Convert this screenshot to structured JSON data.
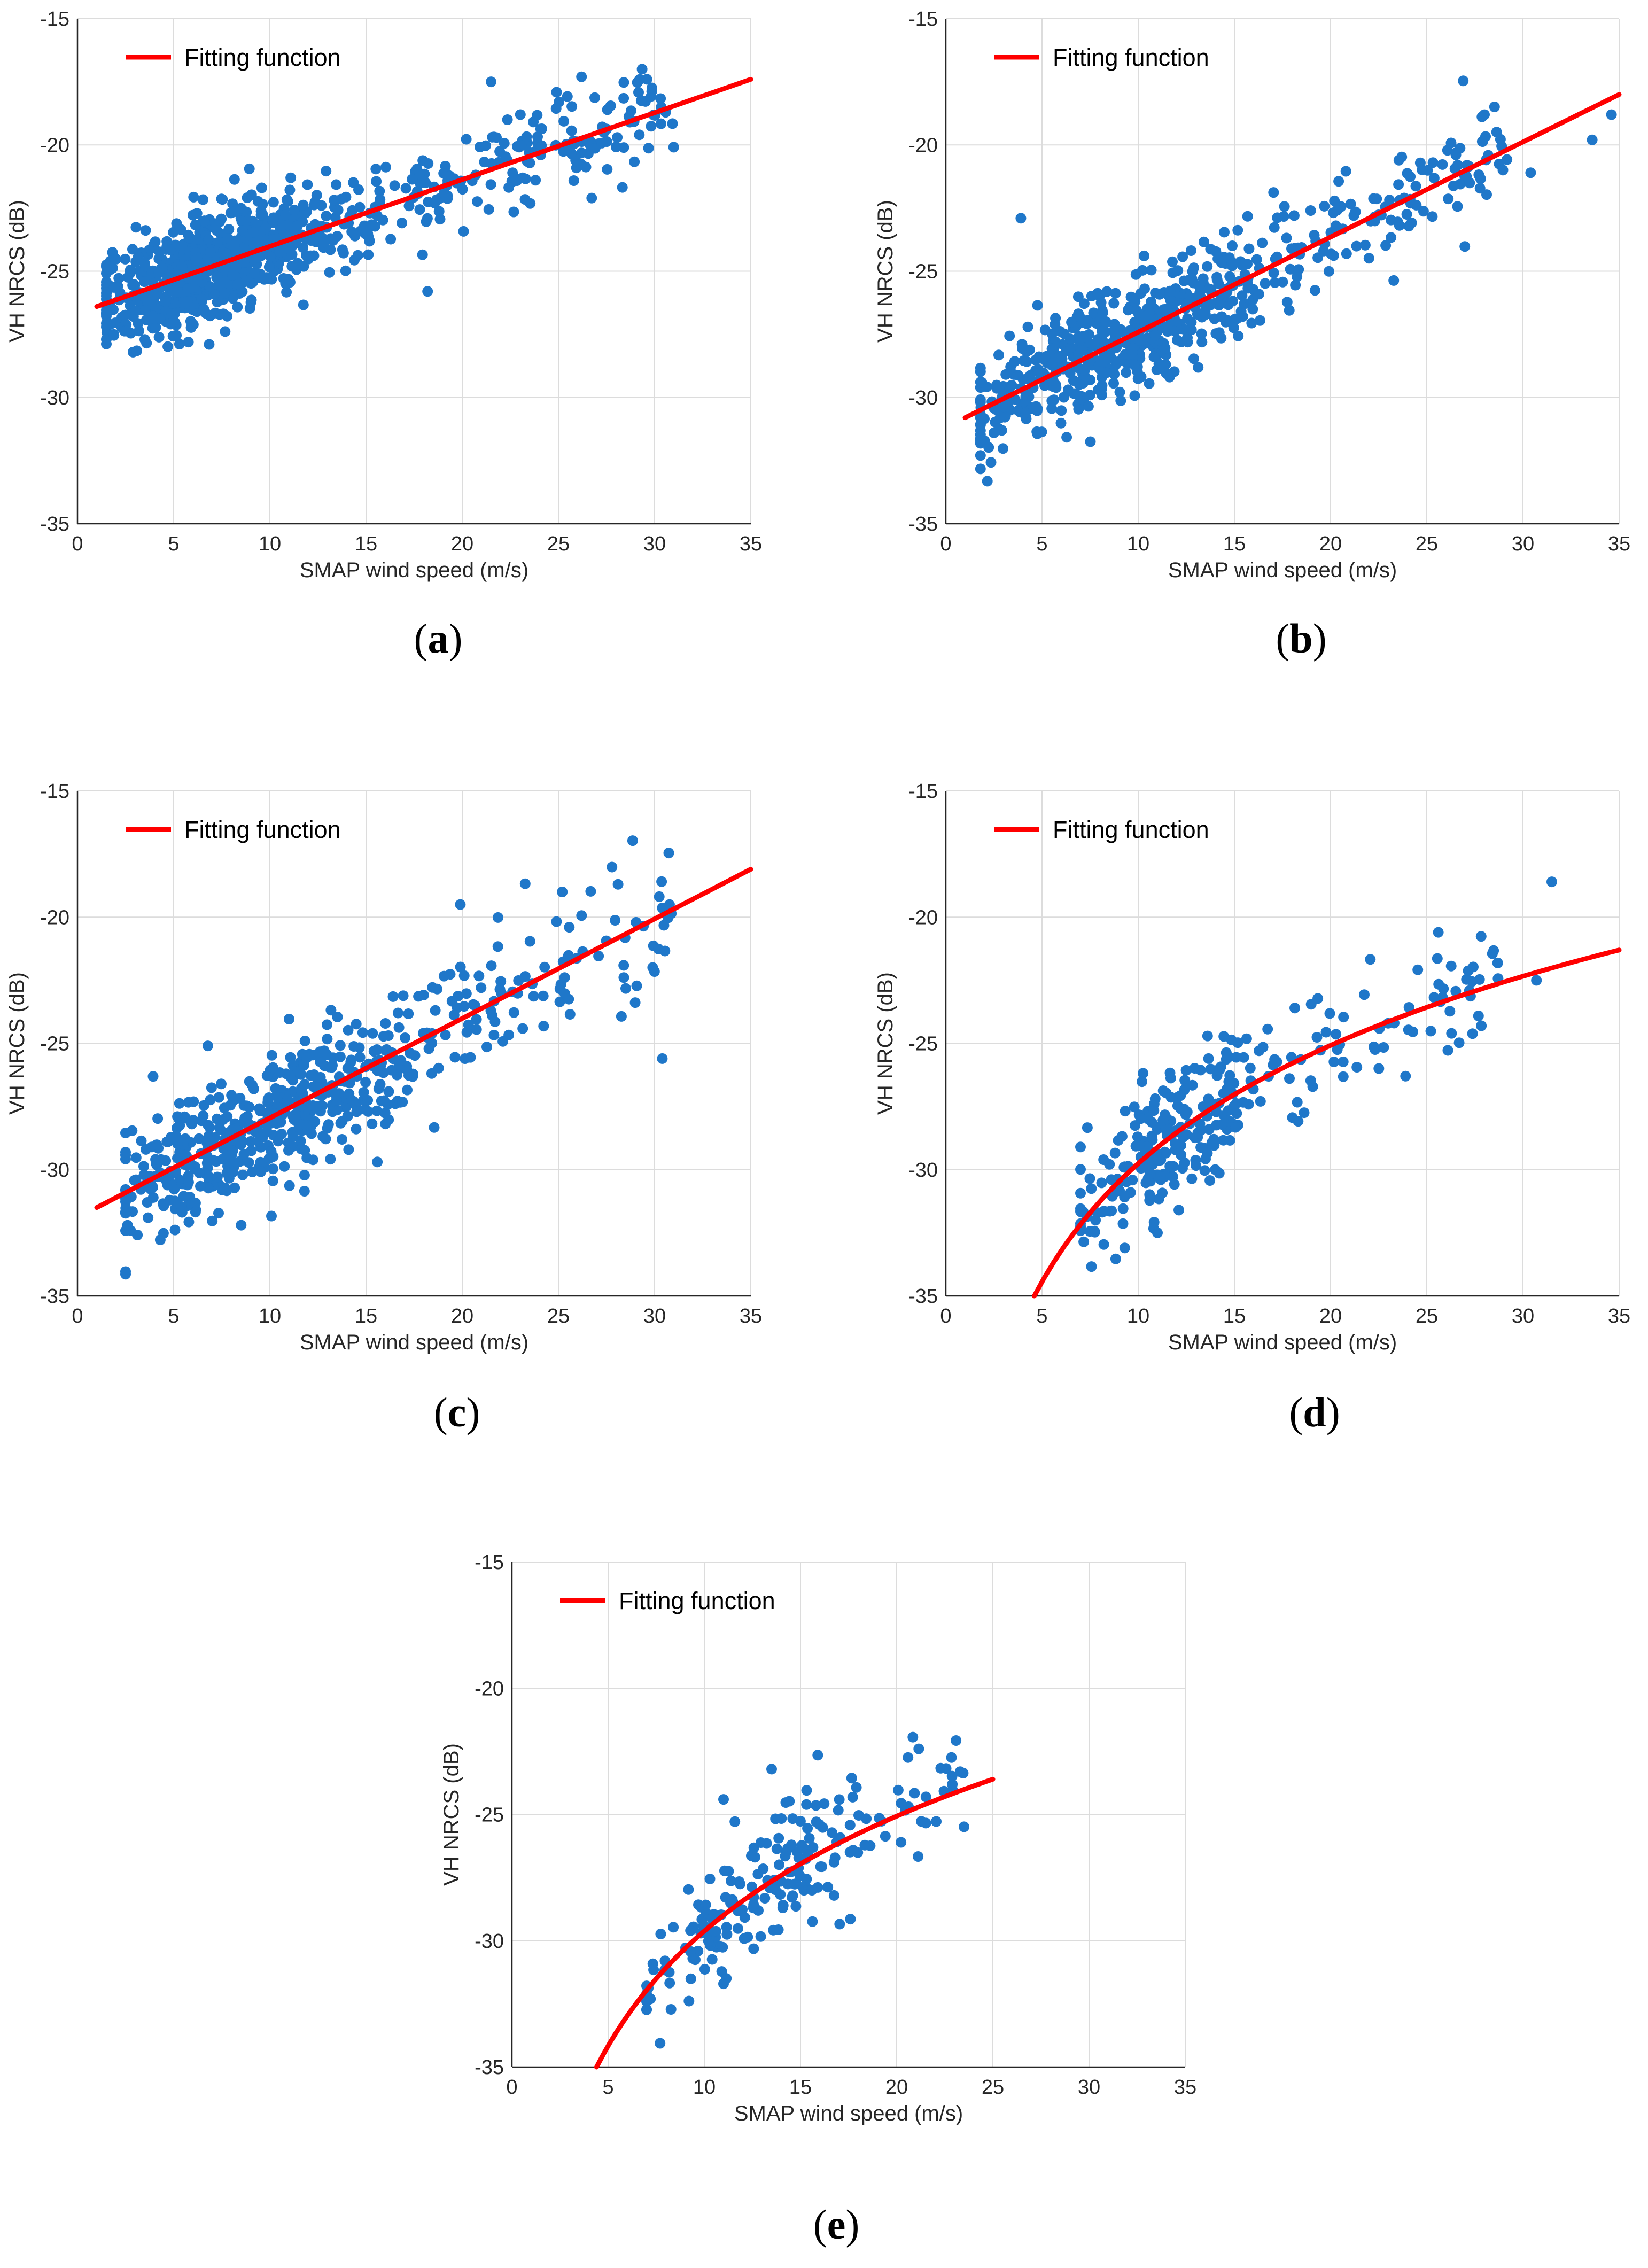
{
  "figure": {
    "colors": {
      "scatter": "#1f77c9",
      "fit": "#ff0000",
      "grid": "#dcdcdc",
      "axis": "#262626"
    },
    "legend_label": "Fitting function",
    "xlabel": "SMAP wind speed (m/s)",
    "ylabel": "VH NRCS (dB)"
  },
  "chart_data": [
    {
      "id": "a",
      "type": "scatter",
      "caption": "a",
      "xlabel": "SMAP wind speed (m/s)",
      "ylabel": "VH NRCS (dB)",
      "xlim": [
        0,
        35
      ],
      "ylim": [
        -35,
        -15
      ],
      "xticks": [
        "0",
        "5",
        "10",
        "15",
        "20",
        "25",
        "30",
        "35"
      ],
      "yticks": [
        "-35",
        "-30",
        "-25",
        "-20",
        "-15"
      ],
      "grid": true,
      "legend": {
        "label": "Fitting function",
        "position": "top-left"
      },
      "fit": {
        "type": "linear",
        "x": [
          1,
          35
        ],
        "y": [
          -26.4,
          -17.4
        ]
      },
      "scatter": {
        "seed": 11,
        "count": 900,
        "xmin": 1.5,
        "xmax": 31,
        "mode": 7,
        "kind": "linear",
        "a": 0.265,
        "b": -26.65,
        "noise": 1.0,
        "extra": [
          [
            18.2,
            -25.8
          ],
          [
            26.2,
            -17.3
          ],
          [
            29.6,
            -17.4
          ],
          [
            21.5,
            -17.5
          ]
        ]
      }
    },
    {
      "id": "b",
      "type": "scatter",
      "caption": "b",
      "xlabel": "SMAP wind speed (m/s)",
      "ylabel": "VH NRCS (dB)",
      "xlim": [
        0,
        35
      ],
      "ylim": [
        -35,
        -15
      ],
      "xticks": [
        "0",
        "5",
        "10",
        "15",
        "20",
        "25",
        "30",
        "35"
      ],
      "yticks": [
        "-35",
        "-30",
        "-25",
        "-20",
        "-15"
      ],
      "grid": true,
      "legend": {
        "label": "Fitting function",
        "position": "top-left"
      },
      "fit": {
        "type": "linear",
        "x": [
          1,
          35
        ],
        "y": [
          -30.8,
          -18.0
        ]
      },
      "scatter": {
        "seed": 23,
        "count": 650,
        "xmin": 1.8,
        "xmax": 29.5,
        "mode": 9,
        "kind": "linear",
        "a": 0.376,
        "b": -31.15,
        "noise": 1.05,
        "extra": [
          [
            3.9,
            -22.9
          ],
          [
            33.6,
            -19.8
          ],
          [
            34.6,
            -18.8
          ],
          [
            30.4,
            -21.1
          ],
          [
            28.0,
            -18.8
          ],
          [
            2.5,
            -31.4
          ]
        ]
      }
    },
    {
      "id": "c",
      "type": "scatter",
      "caption": "c",
      "xlabel": "SMAP wind speed (m/s)",
      "ylabel": "VH NRCS (dB)",
      "xlim": [
        0,
        35
      ],
      "ylim": [
        -35,
        -15
      ],
      "xticks": [
        "0",
        "5",
        "10",
        "15",
        "20",
        "25",
        "30",
        "35"
      ],
      "yticks": [
        "-35",
        "-30",
        "-25",
        "-20",
        "-15"
      ],
      "grid": true,
      "legend": {
        "label": "Fitting function",
        "position": "top-left"
      },
      "fit": {
        "type": "linear",
        "x": [
          1,
          35
        ],
        "y": [
          -31.5,
          -18.1
        ]
      },
      "scatter": {
        "seed": 37,
        "count": 600,
        "xmin": 2.5,
        "xmax": 31,
        "mode": 10,
        "kind": "linear",
        "a": 0.394,
        "b": -31.9,
        "noise": 1.35,
        "extra": [
          [
            30.4,
            -25.6
          ],
          [
            28.1,
            -18.7
          ],
          [
            25.2,
            -19.0
          ],
          [
            19.9,
            -19.5
          ],
          [
            2.6,
            -32.2
          ]
        ]
      }
    },
    {
      "id": "d",
      "type": "scatter",
      "caption": "d",
      "xlabel": "SMAP wind speed (m/s)",
      "ylabel": "VH NRCS (dB)",
      "xlim": [
        0,
        35
      ],
      "ylim": [
        -35,
        -15
      ],
      "xticks": [
        "0",
        "5",
        "10",
        "15",
        "20",
        "25",
        "30",
        "35"
      ],
      "yticks": [
        "-35",
        "-30",
        "-25",
        "-20",
        "-15"
      ],
      "grid": true,
      "legend": {
        "label": "Fitting function",
        "position": "top-left"
      },
      "fit": {
        "type": "log",
        "x": [
          4.6,
          35
        ],
        "y": [
          -35.0,
          -21.3
        ]
      },
      "scatter": {
        "seed": 51,
        "count": 300,
        "xmin": 7,
        "xmax": 29,
        "mode": 12,
        "kind": "log",
        "noise": 1.2,
        "extra": [
          [
            31.5,
            -18.6
          ],
          [
            25.6,
            -20.6
          ],
          [
            30.7,
            -22.5
          ],
          [
            9.3,
            -33.1
          ],
          [
            11.0,
            -32.5
          ]
        ]
      }
    },
    {
      "id": "e",
      "type": "scatter",
      "caption": "e",
      "xlabel": "SMAP wind speed (m/s)",
      "ylabel": "VH NRCS (dB)",
      "xlim": [
        0,
        35
      ],
      "ylim": [
        -35,
        -15
      ],
      "xticks": [
        "0",
        "5",
        "10",
        "15",
        "20",
        "25",
        "30",
        "35"
      ],
      "yticks": [
        "-35",
        "-30",
        "-25",
        "-20",
        "-15"
      ],
      "grid": true,
      "legend": {
        "label": "Fitting function",
        "position": "top-left"
      },
      "fit": {
        "type": "log",
        "x": [
          4.4,
          25
        ],
        "y": [
          -35.0,
          -23.6
        ]
      },
      "scatter": {
        "seed": 67,
        "count": 200,
        "xmin": 7,
        "xmax": 23.5,
        "mode": 14,
        "kind": "log",
        "noise": 1.2,
        "extra": [
          [
            23.3,
            -23.3
          ],
          [
            13.5,
            -23.2
          ],
          [
            11.0,
            -24.4
          ],
          [
            7.2,
            -32.3
          ],
          [
            11.0,
            -31.7
          ]
        ]
      }
    }
  ]
}
